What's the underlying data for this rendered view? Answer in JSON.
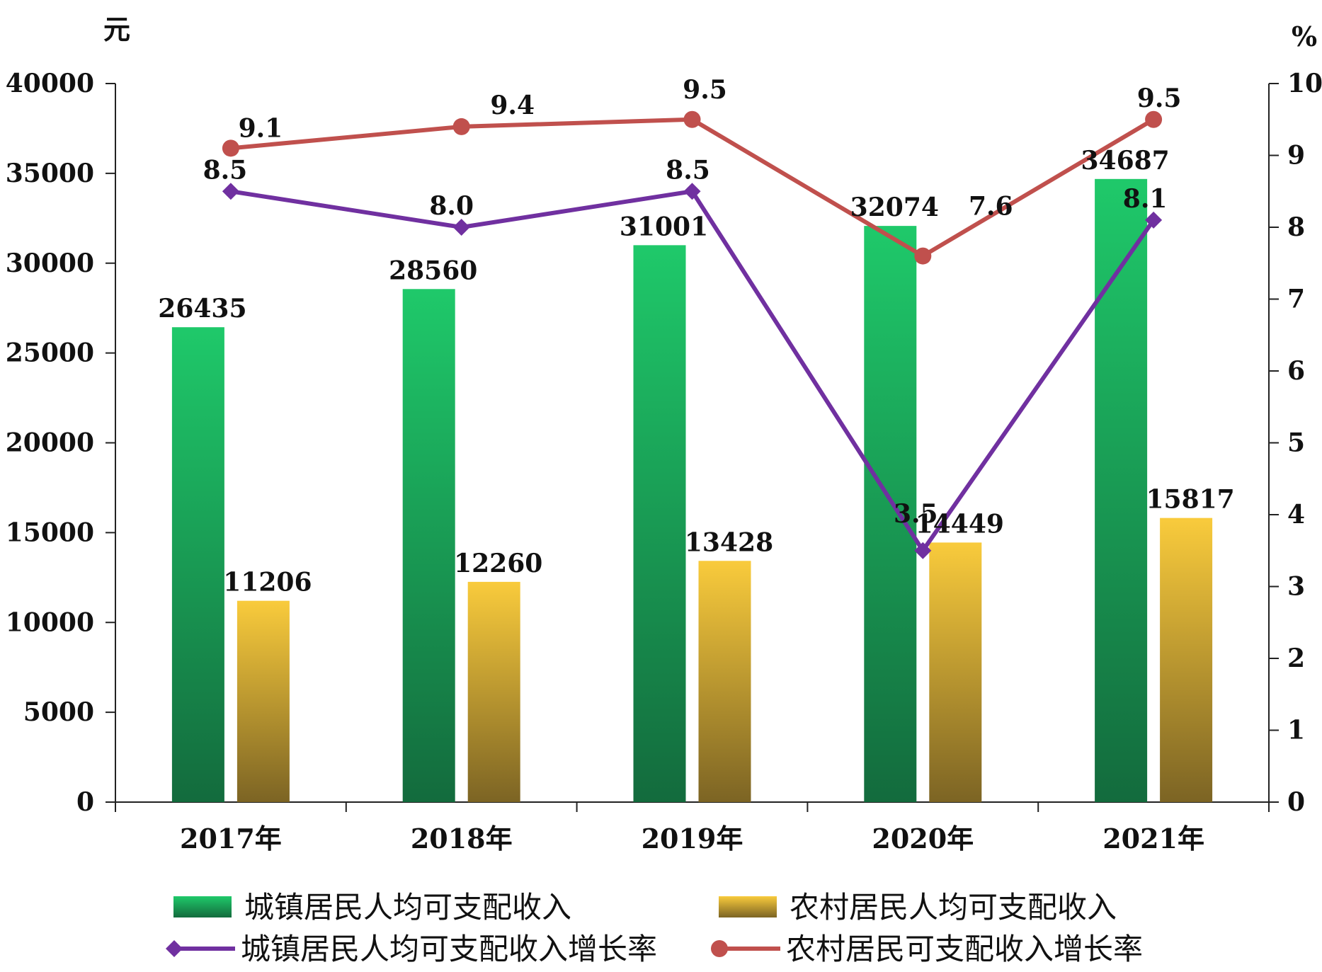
{
  "chart_data": {
    "type": "bar",
    "categories": [
      "2017年",
      "2018年",
      "2019年",
      "2020年",
      "2021年"
    ],
    "left_axis": {
      "unit": "元",
      "ylim": [
        0,
        40000
      ],
      "ticks": [
        0,
        5000,
        10000,
        15000,
        20000,
        25000,
        30000,
        35000,
        40000
      ]
    },
    "right_axis": {
      "unit": "%",
      "ylim": [
        0,
        10
      ],
      "ticks": [
        0,
        1,
        2,
        3,
        4,
        5,
        6,
        7,
        8,
        9,
        10
      ]
    },
    "series": [
      {
        "name": "城镇居民人均可支配收入",
        "type": "bar",
        "axis": "left",
        "values": [
          26435,
          28560,
          31001,
          32074,
          34687
        ],
        "labels": [
          "26435",
          "28560",
          "31001",
          "32074",
          "34687"
        ],
        "color": "#1fc96a",
        "color_dark": "#136b3d"
      },
      {
        "name": "农村居民人均可支配收入",
        "type": "bar",
        "axis": "left",
        "values": [
          11206,
          12260,
          13428,
          14449,
          15817
        ],
        "labels": [
          "11206",
          "12260",
          "13428",
          "14449",
          "15817"
        ],
        "color": "#f9cb3c",
        "color_dark": "#7c6424"
      },
      {
        "name": "城镇居民人均可支配收入增长率",
        "type": "line",
        "axis": "right",
        "marker": "diamond",
        "values": [
          8.5,
          8.0,
          8.5,
          3.5,
          8.1
        ],
        "labels": [
          "8.5",
          "8.0",
          "8.5",
          "3.5",
          "8.1"
        ],
        "color": "#7030a0"
      },
      {
        "name": "农村居民可支配收入增长率",
        "type": "line",
        "axis": "right",
        "marker": "circle",
        "values": [
          9.1,
          9.4,
          9.5,
          7.6,
          9.5
        ],
        "labels": [
          "9.1",
          "9.4",
          "9.5",
          "7.6",
          "9.5"
        ],
        "color": "#c0504d"
      }
    ],
    "grid": false,
    "legend_position": "bottom"
  }
}
